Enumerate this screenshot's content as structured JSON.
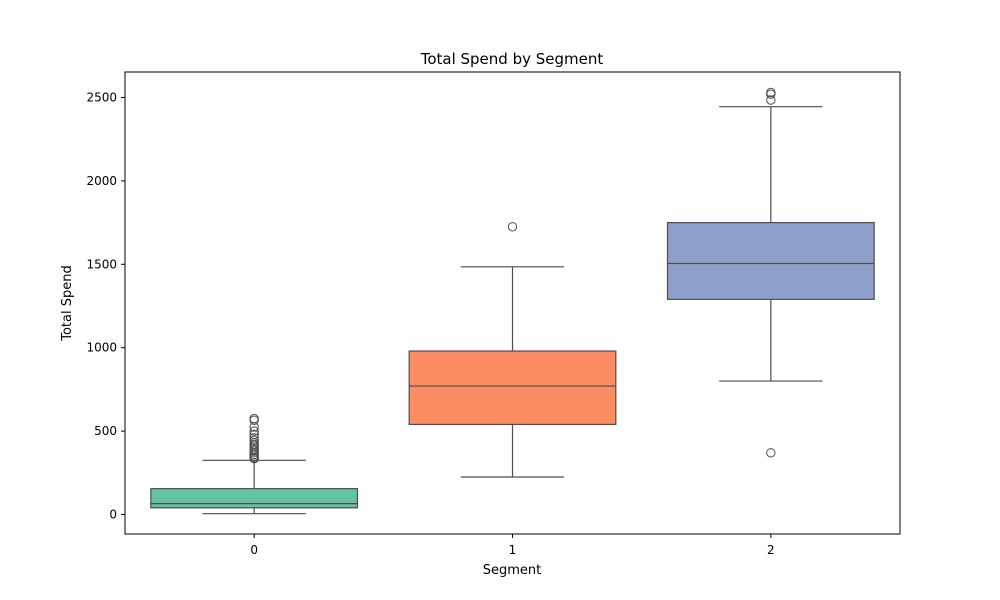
{
  "chart_data": {
    "type": "box",
    "title": "Total Spend by Segment",
    "xlabel": "Segment",
    "ylabel": "Total Spend",
    "categories": [
      "0",
      "1",
      "2"
    ],
    "ylim": [
      -120,
      2650
    ],
    "yticks": [
      0,
      500,
      1000,
      1500,
      2000,
      2500
    ],
    "grid": false,
    "legend": "none",
    "boxes": [
      {
        "category": "0",
        "color": "#66c2a5",
        "whisker_low": 5,
        "q1": 40,
        "median": 65,
        "q3": 155,
        "whisker_high": 325,
        "outliers": [
          335,
          340,
          350,
          360,
          370,
          380,
          390,
          400,
          410,
          420,
          430,
          445,
          460,
          480,
          500,
          525,
          565,
          575
        ]
      },
      {
        "category": "1",
        "color": "#fc8d62",
        "whisker_low": 225,
        "q1": 540,
        "median": 770,
        "q3": 980,
        "whisker_high": 1485,
        "outliers": [
          1725
        ]
      },
      {
        "category": "2",
        "color": "#8da0cb",
        "whisker_low": 800,
        "q1": 1290,
        "median": 1505,
        "q3": 1750,
        "whisker_high": 2445,
        "outliers": [
          370,
          2485,
          2520,
          2530
        ]
      }
    ]
  }
}
